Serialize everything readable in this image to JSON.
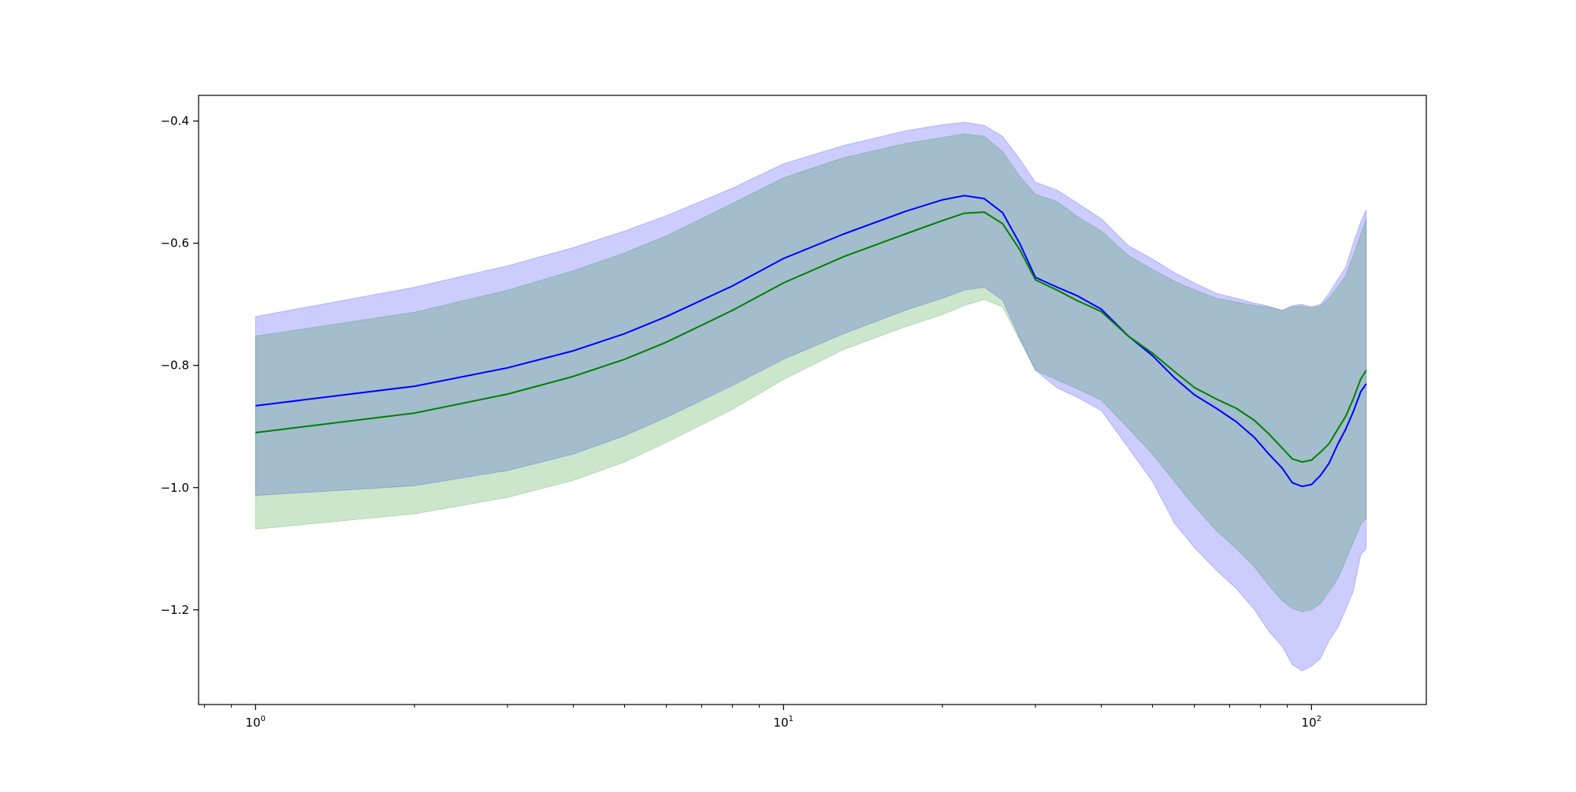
{
  "chart_data": {
    "type": "line",
    "title": "",
    "xlabel": "",
    "ylabel": "",
    "xscale": "log",
    "xlim": [
      0.78,
      165
    ],
    "ylim": [
      -1.355,
      -0.358
    ],
    "grid": false,
    "legend": "none",
    "x_ticks": [
      {
        "value": 1,
        "label": "10",
        "exp": "0"
      },
      {
        "value": 10,
        "label": "10",
        "exp": "1"
      },
      {
        "value": 100,
        "label": "10",
        "exp": "2"
      }
    ],
    "y_ticks": [
      {
        "value": -0.4,
        "label": "−0.4"
      },
      {
        "value": -0.6,
        "label": "−0.6"
      },
      {
        "value": -0.8,
        "label": "−0.8"
      },
      {
        "value": -1.0,
        "label": "−1.0"
      },
      {
        "value": -1.2,
        "label": "−1.2"
      }
    ],
    "series": [
      {
        "color": "#0000ff",
        "band_color": "#0000ff",
        "band_opacity": 0.2,
        "x": [
          1,
          2,
          3,
          4,
          5,
          6,
          8,
          10,
          13,
          17,
          20,
          22,
          24,
          26,
          28,
          30,
          33,
          36,
          40,
          45,
          50,
          55,
          60,
          66,
          72,
          78,
          83,
          88,
          92,
          96,
          100,
          104,
          108,
          112,
          116,
          120,
          124,
          127
        ],
        "mean": [
          -0.866,
          -0.834,
          -0.804,
          -0.776,
          -0.748,
          -0.72,
          -0.67,
          -0.625,
          -0.585,
          -0.548,
          -0.529,
          -0.522,
          -0.527,
          -0.55,
          -0.6,
          -0.656,
          -0.672,
          -0.686,
          -0.708,
          -0.752,
          -0.784,
          -0.82,
          -0.848,
          -0.87,
          -0.892,
          -0.918,
          -0.945,
          -0.968,
          -0.992,
          -0.998,
          -0.995,
          -0.98,
          -0.96,
          -0.93,
          -0.905,
          -0.876,
          -0.843,
          -0.83
        ],
        "upper": [
          -0.72,
          -0.672,
          -0.637,
          -0.607,
          -0.58,
          -0.555,
          -0.51,
          -0.47,
          -0.44,
          -0.416,
          -0.406,
          -0.402,
          -0.407,
          -0.425,
          -0.462,
          -0.5,
          -0.513,
          -0.534,
          -0.56,
          -0.604,
          -0.626,
          -0.648,
          -0.665,
          -0.682,
          -0.69,
          -0.698,
          -0.703,
          -0.71,
          -0.702,
          -0.7,
          -0.704,
          -0.7,
          -0.682,
          -0.66,
          -0.64,
          -0.6,
          -0.565,
          -0.545
        ],
        "lower": [
          -1.013,
          -0.997,
          -0.972,
          -0.945,
          -0.915,
          -0.885,
          -0.833,
          -0.79,
          -0.748,
          -0.71,
          -0.69,
          -0.677,
          -0.672,
          -0.693,
          -0.755,
          -0.808,
          -0.837,
          -0.852,
          -0.874,
          -0.935,
          -0.99,
          -1.058,
          -1.098,
          -1.135,
          -1.165,
          -1.2,
          -1.235,
          -1.26,
          -1.29,
          -1.3,
          -1.292,
          -1.28,
          -1.25,
          -1.23,
          -1.2,
          -1.17,
          -1.11,
          -1.1
        ]
      },
      {
        "color": "#008000",
        "band_color": "#008000",
        "band_opacity": 0.2,
        "x": [
          1,
          2,
          3,
          4,
          5,
          6,
          8,
          10,
          13,
          17,
          20,
          22,
          24,
          26,
          28,
          30,
          33,
          36,
          40,
          45,
          50,
          55,
          60,
          66,
          72,
          78,
          83,
          88,
          92,
          96,
          100,
          104,
          108,
          112,
          116,
          120,
          124,
          127
        ],
        "mean": [
          -0.91,
          -0.878,
          -0.847,
          -0.818,
          -0.79,
          -0.762,
          -0.71,
          -0.665,
          -0.622,
          -0.585,
          -0.563,
          -0.551,
          -0.549,
          -0.568,
          -0.61,
          -0.66,
          -0.677,
          -0.694,
          -0.712,
          -0.752,
          -0.78,
          -0.81,
          -0.836,
          -0.855,
          -0.87,
          -0.89,
          -0.912,
          -0.935,
          -0.953,
          -0.958,
          -0.955,
          -0.942,
          -0.928,
          -0.905,
          -0.884,
          -0.855,
          -0.822,
          -0.808
        ],
        "upper": [
          -0.752,
          -0.713,
          -0.677,
          -0.645,
          -0.616,
          -0.588,
          -0.535,
          -0.493,
          -0.46,
          -0.437,
          -0.427,
          -0.421,
          -0.425,
          -0.45,
          -0.49,
          -0.52,
          -0.532,
          -0.556,
          -0.58,
          -0.62,
          -0.643,
          -0.662,
          -0.676,
          -0.69,
          -0.696,
          -0.702,
          -0.705,
          -0.71,
          -0.704,
          -0.703,
          -0.706,
          -0.703,
          -0.69,
          -0.672,
          -0.654,
          -0.62,
          -0.585,
          -0.56
        ],
        "lower": [
          -1.068,
          -1.043,
          -1.016,
          -0.988,
          -0.958,
          -0.926,
          -0.872,
          -0.823,
          -0.774,
          -0.737,
          -0.717,
          -0.702,
          -0.692,
          -0.704,
          -0.758,
          -0.808,
          -0.824,
          -0.838,
          -0.857,
          -0.903,
          -0.945,
          -0.99,
          -1.03,
          -1.07,
          -1.1,
          -1.13,
          -1.16,
          -1.185,
          -1.198,
          -1.203,
          -1.2,
          -1.19,
          -1.17,
          -1.15,
          -1.12,
          -1.09,
          -1.06,
          -1.05
        ]
      }
    ]
  }
}
